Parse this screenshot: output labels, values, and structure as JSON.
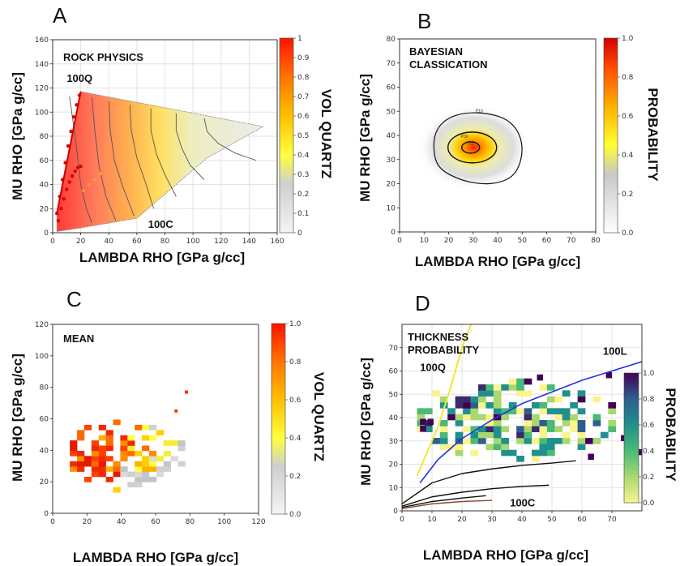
{
  "panels": [
    {
      "id": "A",
      "letter": "A",
      "inset_title": [
        "ROCK PHYSICS"
      ],
      "xlabel": "LAMBDA RHO [GPa g/cc]",
      "ylabel": "MU RHO [GPa g/cc]",
      "colorbar_label": "VOL QUARTZ",
      "annotations": [
        "100Q",
        "100C"
      ]
    },
    {
      "id": "B",
      "letter": "B",
      "inset_title": [
        "BAYESIAN",
        "CLASSICATION"
      ],
      "xlabel": "LAMBDA RHO [GPa g/cc]",
      "ylabel": "MU RHO [GPa g/cc]",
      "colorbar_label": "PROBABILITY",
      "annotations": []
    },
    {
      "id": "C",
      "letter": "C",
      "inset_title": [
        "MEAN"
      ],
      "xlabel": "LAMBDA RHO [GPa g/cc]",
      "ylabel": "MU RHO [GPa g/cc]",
      "colorbar_label": "VOL QUARTZ",
      "annotations": []
    },
    {
      "id": "D",
      "letter": "D",
      "inset_title": [
        "THICKNESS",
        "PROBABILITY"
      ],
      "xlabel": "LAMBDA RHO [GPa g/cc]",
      "ylabel": "MU RHO [GPa g/cc]",
      "colorbar_label": "PROBABILITY",
      "annotations": [
        "100Q",
        "100L",
        "100C"
      ]
    }
  ],
  "chart_data": [
    {
      "panel": "A",
      "type": "area",
      "xlim": [
        0,
        160
      ],
      "ylim": [
        0,
        160
      ],
      "xticks": [
        0,
        20,
        40,
        60,
        80,
        100,
        120,
        140,
        160
      ],
      "yticks": [
        0,
        20,
        40,
        60,
        80,
        100,
        120,
        140,
        160
      ],
      "colorbar_ticks": [
        "0",
        "0.1",
        "0.2",
        "0.3",
        "0.4",
        "0.5",
        "0.6",
        "0.7",
        "0.8",
        "0.9",
        "1"
      ],
      "colormap": [
        "#eeeeee",
        "#d8d8d8",
        "#ffff44",
        "#ffc400",
        "#ff7a00",
        "#ff1a00"
      ],
      "polygon": [
        [
          3,
          16
        ],
        [
          20,
          117
        ],
        [
          150,
          88
        ],
        [
          110,
          62
        ],
        [
          60,
          12
        ],
        [
          20,
          4
        ],
        [
          3,
          1
        ]
      ],
      "red_points": [
        [
          3,
          16
        ],
        [
          5,
          30
        ],
        [
          7,
          44
        ],
        [
          9,
          58
        ],
        [
          11,
          72
        ],
        [
          13,
          84
        ],
        [
          15,
          96
        ],
        [
          17,
          106
        ],
        [
          19,
          114
        ],
        [
          4,
          10
        ],
        [
          6,
          20
        ],
        [
          8,
          28
        ],
        [
          10,
          36
        ],
        [
          12,
          42
        ],
        [
          14,
          47
        ],
        [
          16,
          51
        ],
        [
          18,
          54
        ],
        [
          20,
          55
        ]
      ],
      "orange_points": [
        [
          22,
          35
        ],
        [
          26,
          40
        ],
        [
          30,
          44
        ],
        [
          34,
          49
        ]
      ],
      "grid": true
    },
    {
      "panel": "B",
      "type": "heatmap",
      "xlim": [
        0,
        80
      ],
      "ylim": [
        0,
        80
      ],
      "xticks": [
        0,
        10,
        20,
        30,
        40,
        50,
        60,
        70,
        80
      ],
      "yticks": [
        0,
        10,
        20,
        30,
        40,
        50,
        60,
        70,
        80
      ],
      "colorbar_ticks": [
        "0.0",
        "0.2",
        "0.4",
        "0.6",
        "0.8",
        "1.0"
      ],
      "colormap": [
        "#ffffff",
        "#cccccc",
        "#ffff33",
        "#ffb000",
        "#ff5000",
        "#d80000"
      ],
      "peak": [
        29,
        35
      ],
      "contour_labels": [
        "P10",
        "P50",
        "P90"
      ],
      "grid": false
    },
    {
      "panel": "C",
      "type": "heatmap",
      "xlim": [
        0,
        120
      ],
      "ylim": [
        0,
        120
      ],
      "xticks": [
        0,
        20,
        40,
        60,
        80,
        100,
        120
      ],
      "yticks": [
        0,
        20,
        40,
        60,
        80,
        100,
        120
      ],
      "colorbar_ticks": [
        "0.0",
        "0.2",
        "0.4",
        "0.6",
        "0.8",
        "1.0"
      ],
      "colormap": [
        "#ffffff",
        "#cccccc",
        "#ffff33",
        "#ffb000",
        "#ff5000",
        "#e00000"
      ],
      "grid": false
    },
    {
      "panel": "D",
      "type": "heatmap",
      "xlim": [
        0,
        80
      ],
      "ylim": [
        0,
        80
      ],
      "xticks": [
        0,
        10,
        20,
        30,
        40,
        50,
        60,
        70
      ],
      "yticks": [
        0,
        10,
        20,
        30,
        40,
        50,
        60,
        70
      ],
      "colorbar_ticks": [
        "0.0",
        "0.2",
        "0.4",
        "0.6",
        "0.8",
        "1.0"
      ],
      "colormap": [
        "#fbf38e",
        "#a8d86e",
        "#4aba76",
        "#21908d",
        "#2f5e8e",
        "#3b2a6b",
        "#440154"
      ],
      "trend_100Q": [
        [
          5,
          15
        ],
        [
          8,
          24
        ],
        [
          12,
          36
        ],
        [
          16,
          52
        ],
        [
          20,
          70
        ],
        [
          23,
          80
        ]
      ],
      "trend_100L": [
        [
          6,
          12
        ],
        [
          12,
          22
        ],
        [
          20,
          31
        ],
        [
          30,
          39
        ],
        [
          40,
          46
        ],
        [
          50,
          51
        ],
        [
          60,
          56
        ],
        [
          70,
          60
        ],
        [
          80,
          64
        ]
      ],
      "trend_mid": [
        [
          0,
          3
        ],
        [
          10,
          12
        ],
        [
          20,
          16
        ],
        [
          30,
          18
        ],
        [
          40,
          19.5
        ],
        [
          50,
          20.5
        ],
        [
          58,
          21.5
        ]
      ],
      "trend_low1": [
        [
          0,
          2
        ],
        [
          10,
          6
        ],
        [
          20,
          8
        ],
        [
          30,
          9.5
        ],
        [
          40,
          10.5
        ],
        [
          49,
          11
        ]
      ],
      "trend_low2": [
        [
          0,
          1.5
        ],
        [
          10,
          4
        ],
        [
          20,
          5.5
        ],
        [
          28,
          6.5
        ]
      ],
      "trend_low3": [
        [
          0,
          1
        ],
        [
          10,
          3
        ],
        [
          20,
          4
        ],
        [
          30,
          4.5
        ]
      ],
      "grid": true
    }
  ]
}
